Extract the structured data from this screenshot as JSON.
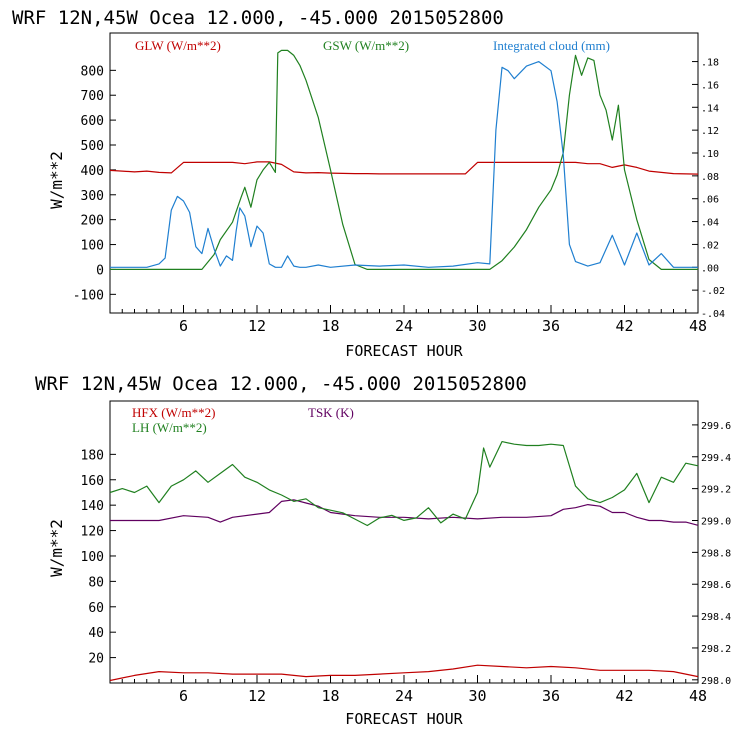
{
  "charts": [
    {
      "title": "WRF  12N,45W Ocea  12.000, -45.000  2015052800",
      "xlabel": "FORECAST HOUR",
      "ylabel": "W/m**2",
      "x_ticks": [
        6,
        12,
        18,
        24,
        30,
        36,
        42,
        48
      ],
      "left_ticks": [
        -100,
        0,
        100,
        200,
        300,
        400,
        500,
        600,
        700,
        800
      ],
      "right_ticks": [
        "-.04",
        "-.02",
        ".00",
        ".02",
        ".04",
        ".06",
        ".08",
        ".10",
        ".12",
        ".14",
        ".16",
        ".18"
      ]
    },
    {
      "title": "WRF  12N,45W Ocea  12.000, -45.000  2015052800",
      "xlabel": "FORECAST HOUR",
      "ylabel": "W/m**2",
      "x_ticks": [
        6,
        12,
        18,
        24,
        30,
        36,
        42,
        48
      ],
      "left_ticks": [
        20,
        40,
        60,
        80,
        100,
        120,
        140,
        160,
        180
      ],
      "right_ticks": [
        "298.0",
        "298.2",
        "298.4",
        "298.6",
        "298.8",
        "299.0",
        "299.2",
        "299.4",
        "299.6"
      ]
    }
  ],
  "chart_data": [
    {
      "type": "line",
      "title": "WRF  12N,45W Ocea  12.000, -45.000  2015052800",
      "xlabel": "FORECAST HOUR",
      "ylabel": "W/m**2",
      "xlim": [
        0,
        48
      ],
      "ylim": [
        -175,
        950
      ],
      "y2lim": [
        -0.04,
        0.205
      ],
      "grid": false,
      "legend": "top",
      "series": [
        {
          "name": "GLW (W/m**2)",
          "color": "#c00000",
          "axis": "left",
          "x": [
            0,
            1,
            2,
            3,
            4,
            5,
            6,
            7,
            8,
            9,
            10,
            11,
            12,
            13,
            14,
            15,
            16,
            17,
            18,
            19,
            20,
            21,
            22,
            23,
            24,
            25,
            26,
            27,
            28,
            29,
            30,
            31,
            32,
            33,
            34,
            35,
            36,
            37,
            38,
            39,
            40,
            41,
            42,
            43,
            44,
            45,
            46,
            47,
            48
          ],
          "y": [
            398,
            395,
            392,
            395,
            390,
            388,
            430,
            430,
            430,
            430,
            430,
            425,
            432,
            432,
            422,
            392,
            388,
            389,
            387,
            386,
            385,
            385,
            384,
            384,
            384,
            384,
            384,
            384,
            384,
            384,
            430,
            430,
            430,
            430,
            430,
            430,
            430,
            430,
            430,
            425,
            425,
            410,
            420,
            410,
            395,
            390,
            385,
            384,
            383
          ]
        },
        {
          "name": "GSW (W/m**2)",
          "color": "#208020",
          "axis": "left",
          "x": [
            0,
            7.5,
            8.5,
            9,
            10,
            10.7,
            11,
            11.5,
            12,
            12.5,
            13,
            13.5,
            13.7,
            14,
            14.5,
            15,
            15.5,
            16,
            17,
            18,
            19,
            20,
            21,
            22,
            23,
            24,
            25,
            26,
            27,
            28,
            29,
            30,
            31,
            32,
            33,
            34,
            35,
            36,
            36.5,
            37,
            37.5,
            38,
            38.5,
            39,
            39.5,
            40,
            40.5,
            41,
            41.5,
            42,
            43,
            44,
            45,
            46,
            47,
            48
          ],
          "y": [
            0,
            0,
            60,
            120,
            190,
            290,
            330,
            250,
            360,
            400,
            430,
            390,
            870,
            880,
            880,
            860,
            820,
            760,
            610,
            400,
            180,
            20,
            0,
            0,
            0,
            0,
            0,
            0,
            0,
            0,
            0,
            0,
            0,
            35,
            90,
            160,
            250,
            320,
            380,
            470,
            700,
            860,
            780,
            850,
            840,
            700,
            640,
            520,
            660,
            400,
            200,
            40,
            0,
            0,
            0,
            0
          ]
        },
        {
          "name": "Integrated cloud (mm)",
          "color": "#1f7fd0",
          "axis": "right",
          "x": [
            0,
            3,
            4,
            4.5,
            5,
            5.5,
            6,
            6.5,
            7,
            7.5,
            8,
            8.5,
            9,
            9.5,
            10,
            10.3,
            10.6,
            11,
            11.5,
            12,
            12.5,
            13,
            13.5,
            14,
            14.5,
            15,
            15.5,
            16,
            17,
            18,
            20,
            22,
            24,
            26,
            28,
            30,
            31,
            31.5,
            32,
            32.5,
            33,
            34,
            35,
            36,
            36.5,
            37,
            37.5,
            38,
            39,
            40,
            41,
            42,
            43,
            44,
            45,
            46,
            48
          ],
          "y": [
            0,
            0,
            0.003,
            0.008,
            0.05,
            0.062,
            0.058,
            0.048,
            0.018,
            0.012,
            0.034,
            0.016,
            0.001,
            0.01,
            0.006,
            0.032,
            0.052,
            0.045,
            0.018,
            0.036,
            0.03,
            0.003,
            0,
            0,
            0.01,
            0.001,
            0,
            0,
            0.002,
            0,
            0.002,
            0.001,
            0.002,
            0,
            0.001,
            0.004,
            0.003,
            0.12,
            0.175,
            0.172,
            0.165,
            0.176,
            0.18,
            0.172,
            0.145,
            0.098,
            0.02,
            0.005,
            0.001,
            0.004,
            0.028,
            0.002,
            0.03,
            0.002,
            0.012,
            0,
            0
          ]
        }
      ]
    },
    {
      "type": "line",
      "title": "WRF  12N,45W Ocea  12.000, -45.000  2015052800",
      "xlabel": "FORECAST HOUR",
      "ylabel": "W/m**2",
      "xlim": [
        0,
        48
      ],
      "ylim": [
        0,
        222
      ],
      "y2lim": [
        297.98,
        299.75
      ],
      "grid": false,
      "legend": "top",
      "series": [
        {
          "name": "HFX (W/m**2)",
          "color": "#c00000",
          "axis": "left",
          "x": [
            0,
            2,
            4,
            6,
            8,
            10,
            12,
            14,
            16,
            18,
            20,
            22,
            24,
            26,
            28,
            30,
            32,
            34,
            36,
            38,
            40,
            42,
            44,
            46,
            48
          ],
          "y": [
            2,
            6,
            9,
            8,
            8,
            7,
            7,
            7,
            5,
            6,
            6,
            7,
            8,
            9,
            11,
            14,
            13,
            12,
            13,
            12,
            10,
            10,
            10,
            9,
            5
          ]
        },
        {
          "name": "TSK (K)",
          "color": "#600060",
          "axis": "right",
          "x": [
            0,
            2,
            4,
            6,
            8,
            9,
            10,
            12,
            13,
            14,
            15,
            16,
            17,
            18,
            19,
            20,
            22,
            24,
            26,
            28,
            30,
            32,
            34,
            36,
            37,
            38,
            39,
            40,
            41,
            42,
            43,
            44,
            45,
            46,
            47,
            48
          ],
          "y": [
            299.0,
            299.0,
            299.0,
            299.03,
            299.02,
            298.99,
            299.02,
            299.04,
            299.05,
            299.12,
            299.13,
            299.11,
            299.09,
            299.05,
            299.04,
            299.03,
            299.02,
            299.02,
            299.01,
            299.02,
            299.01,
            299.02,
            299.02,
            299.03,
            299.07,
            299.08,
            299.1,
            299.09,
            299.05,
            299.05,
            299.02,
            299.0,
            299.0,
            298.99,
            298.99,
            298.97
          ]
        },
        {
          "name": "LH (W/m**2)",
          "color": "#208020",
          "axis": "left",
          "x": [
            0,
            1,
            2,
            3,
            4,
            5,
            6,
            7,
            8,
            9,
            10,
            11,
            12,
            13,
            14,
            15,
            16,
            17,
            18,
            19,
            20,
            21,
            22,
            23,
            24,
            25,
            26,
            27,
            28,
            29,
            30,
            30.5,
            31,
            32,
            33,
            34,
            35,
            36,
            37,
            38,
            38.5,
            39,
            40,
            41,
            42,
            43,
            44,
            45,
            46,
            47,
            48
          ],
          "y": [
            150,
            153,
            150,
            155,
            142,
            155,
            160,
            167,
            158,
            165,
            172,
            162,
            158,
            152,
            148,
            143,
            145,
            138,
            136,
            134,
            129,
            124,
            130,
            132,
            128,
            130,
            138,
            126,
            133,
            129,
            150,
            185,
            170,
            190,
            188,
            187,
            187,
            188,
            187,
            155,
            150,
            145,
            142,
            146,
            152,
            165,
            142,
            162,
            158,
            173,
            171
          ]
        }
      ]
    }
  ]
}
